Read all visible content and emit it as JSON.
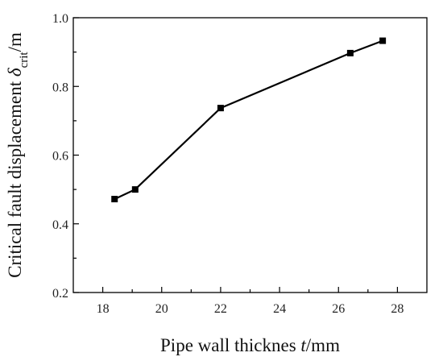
{
  "chart_data": {
    "type": "line",
    "xlabel": {
      "pre": "Pipe wall thicknes ",
      "italic": "t",
      "post": "/mm"
    },
    "ylabel": {
      "pre": "Critical fault displacement ",
      "symbol": "δ",
      "sub": "crit",
      "post": "/m"
    },
    "xlim": [
      17,
      29
    ],
    "ylim": [
      0.2,
      1.0
    ],
    "xticks": [
      18,
      20,
      22,
      24,
      26,
      28
    ],
    "xtick_labels": [
      "18",
      "20",
      "22",
      "24",
      "26",
      "28"
    ],
    "yticks": [
      0.2,
      0.4,
      0.6,
      0.8,
      1.0
    ],
    "ytick_labels": [
      "0.2",
      "0.4",
      "0.6",
      "0.8",
      "1.0"
    ],
    "series": [
      {
        "x": [
          18.4,
          19.1,
          22.0,
          26.4,
          27.5
        ],
        "y": [
          0.472,
          0.5,
          0.737,
          0.897,
          0.933
        ],
        "color": "#000000",
        "marker": "square"
      }
    ],
    "grid": false
  }
}
